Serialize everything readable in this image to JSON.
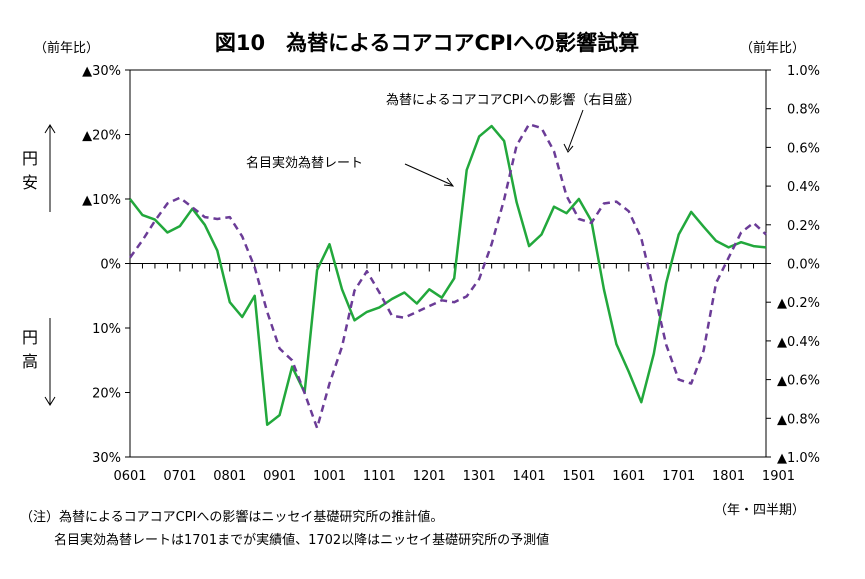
{
  "chart_data": {
    "type": "line",
    "title": "図10　為替によるコアコアCPIへの影響試算",
    "left_unit": "（前年比）",
    "right_unit": "（前年比）",
    "x_unit": "（年・四半期）",
    "left_axis": {
      "min": 30,
      "max": -30,
      "ticks": [
        {
          "value": -30,
          "label": "▲30%"
        },
        {
          "value": -20,
          "label": "▲20%"
        },
        {
          "value": -10,
          "label": "▲10%"
        },
        {
          "value": 0,
          "label": "0%"
        },
        {
          "value": 10,
          "label": "10%"
        },
        {
          "value": 20,
          "label": "20%"
        },
        {
          "value": 30,
          "label": "30%"
        }
      ]
    },
    "right_axis": {
      "min": -1.0,
      "max": 1.0,
      "ticks": [
        {
          "value": 1.0,
          "label": "1.0%"
        },
        {
          "value": 0.8,
          "label": "0.8%"
        },
        {
          "value": 0.6,
          "label": "0.6%"
        },
        {
          "value": 0.4,
          "label": "0.4%"
        },
        {
          "value": 0.2,
          "label": "0.2%"
        },
        {
          "value": 0.0,
          "label": "0.0%"
        },
        {
          "value": -0.2,
          "label": "▲0.2%"
        },
        {
          "value": -0.4,
          "label": "▲0.4%"
        },
        {
          "value": -0.6,
          "label": "▲0.6%"
        },
        {
          "value": -0.8,
          "label": "▲0.8%"
        },
        {
          "value": -1.0,
          "label": "▲1.0%"
        }
      ]
    },
    "x_labels": [
      "0601",
      "0701",
      "0801",
      "0901",
      "1001",
      "1101",
      "1201",
      "1301",
      "1401",
      "1501",
      "1601",
      "1701",
      "1801",
      "1901"
    ],
    "side_labels": {
      "up": "円安",
      "down": "円高"
    },
    "series": [
      {
        "name": "名目実効為替レート",
        "axis": "left",
        "color": "#22a83c",
        "style": "solid",
        "values": [
          -10,
          -7.5,
          -6.8,
          -4.8,
          -5.8,
          -8.5,
          -6,
          -2,
          6,
          8.3,
          5,
          25,
          23.5,
          16,
          20,
          1,
          -3,
          4,
          8.8,
          7.5,
          6.8,
          5.5,
          4.5,
          6.2,
          4,
          5.3,
          2.3,
          -14.5,
          -19.7,
          -21.3,
          -19,
          -9.5,
          -2.7,
          -4.5,
          -8.8,
          -7.8,
          -10,
          -6.6,
          4,
          12.5,
          16.8,
          21.5,
          14,
          3,
          -4.5,
          -8,
          -5.7,
          -3.5,
          -2.5,
          -3.3,
          -2.7,
          -2.5
        ]
      },
      {
        "name": "為替によるコアコアCPIへの影響（右目盛）",
        "axis": "right",
        "color": "#6b3c97",
        "style": "dashed",
        "values": [
          0.03,
          0.12,
          0.22,
          0.31,
          0.34,
          0.29,
          0.24,
          0.23,
          0.24,
          0.14,
          -0.02,
          -0.25,
          -0.44,
          -0.5,
          -0.67,
          -0.85,
          -0.62,
          -0.43,
          -0.14,
          -0.04,
          -0.15,
          -0.27,
          -0.28,
          -0.25,
          -0.22,
          -0.19,
          -0.2,
          -0.17,
          -0.08,
          0.1,
          0.33,
          0.61,
          0.72,
          0.7,
          0.58,
          0.35,
          0.23,
          0.21,
          0.31,
          0.32,
          0.27,
          0.13,
          -0.14,
          -0.42,
          -0.6,
          -0.62,
          -0.45,
          -0.1,
          0.03,
          0.16,
          0.21,
          0.15
        ]
      }
    ]
  },
  "notes": [
    "（注）為替によるコアコアCPIへの影響はニッセイ基礎研究所の推計値。",
    "名目実効為替レートは1701までが実績値、1702以降はニッセイ基礎研究所の予測値"
  ]
}
